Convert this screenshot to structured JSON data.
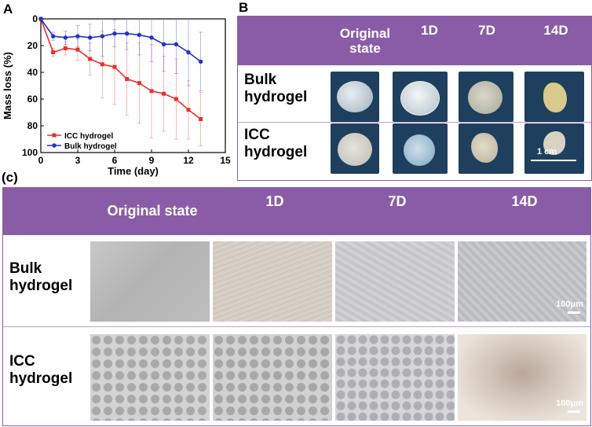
{
  "panels": {
    "a": "A",
    "b": "B",
    "c": "(c)"
  },
  "chart_data": {
    "type": "line",
    "xlabel": "Time (day)",
    "ylabel": "Mass loss (%)",
    "xlim": [
      0,
      15
    ],
    "ylim": [
      0,
      100
    ],
    "y_inverted": true,
    "xticks": [
      0,
      3,
      6,
      9,
      12,
      15
    ],
    "yticks": [
      0,
      20,
      40,
      60,
      80,
      100
    ],
    "legend_position": "bottom-left",
    "x": [
      0,
      1,
      2,
      3,
      4,
      5,
      6,
      7,
      8,
      9,
      10,
      11,
      12,
      13
    ],
    "series": [
      {
        "name": "ICC hydrogel",
        "color": "#e8302a",
        "marker": "square",
        "values": [
          0,
          25,
          22,
          23,
          30,
          34,
          36,
          45,
          48,
          54,
          56,
          60,
          68,
          75
        ],
        "errors": [
          0,
          3,
          5,
          8,
          12,
          25,
          28,
          27,
          30,
          35,
          28,
          30,
          22,
          20
        ]
      },
      {
        "name": "Bulk hydrogel",
        "color": "#2330c8",
        "marker": "circle",
        "values": [
          0,
          13,
          14,
          13,
          14,
          13,
          11,
          11,
          12,
          14,
          19,
          19,
          25,
          32
        ],
        "errors": [
          0,
          3,
          5,
          8,
          10,
          15,
          10,
          12,
          15,
          18,
          20,
          22,
          25,
          22
        ]
      }
    ]
  },
  "table_b": {
    "columns": [
      "Original state",
      "1D",
      "7D",
      "14D"
    ],
    "rows": [
      "Bulk hydrogel",
      "ICC hydrogel"
    ],
    "scale_bar": "1 cm"
  },
  "table_c": {
    "columns": [
      "Original state",
      "1D",
      "7D",
      "14D"
    ],
    "rows": [
      "Bulk hydrogel",
      "ICC hydrogel"
    ],
    "scale_bar": "100μm"
  }
}
